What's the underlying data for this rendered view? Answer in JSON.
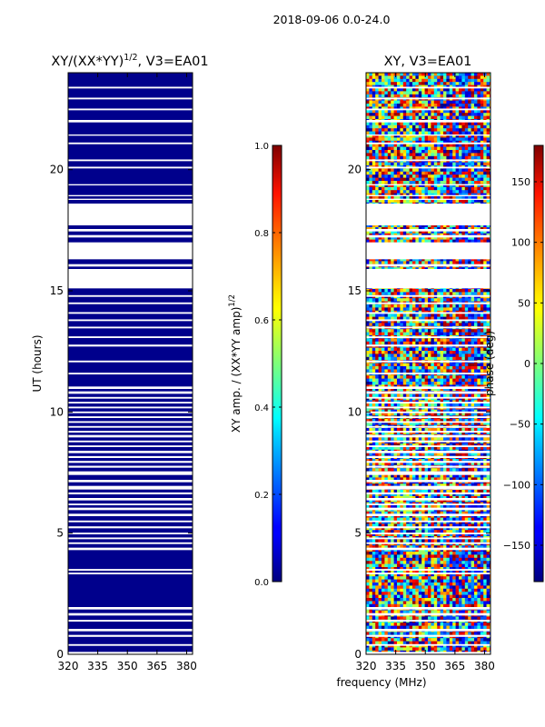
{
  "figure": {
    "suptitle": "2018-09-06 0.0-24.0",
    "xlabel_shared": "frequency (MHz)"
  },
  "chart_data": [
    {
      "type": "heatmap",
      "title": "XY/(XX*YY)^1/2, V3=EA01",
      "title_main": "XY/(XX*YY)",
      "title_exp": "1/2",
      "title_tail": ", V3=EA01",
      "ylabel": "UT (hours)",
      "xlim": [
        320,
        383
      ],
      "ylim": [
        0,
        24
      ],
      "xticks": [
        "320",
        "335",
        "350",
        "365",
        "380"
      ],
      "xtick_values": [
        320,
        335,
        350,
        365,
        380
      ],
      "yticks": [
        "0",
        "5",
        "10",
        "15",
        "20"
      ],
      "ytick_values": [
        0,
        5,
        10,
        15,
        20
      ],
      "cmap": "jet",
      "fill_value": 0.02,
      "colorbar": {
        "label": "XY amp. / (XX*YY amp)^1/2",
        "label_main": "XY amp. / (XX*YY amp)",
        "label_exp": "1/2",
        "range": [
          0.0,
          1.0
        ],
        "ticks": [
          "0.0",
          "0.2",
          "0.4",
          "0.6",
          "0.8",
          "1.0"
        ],
        "tick_values": [
          0.0,
          0.2,
          0.4,
          0.6,
          0.8,
          1.0
        ]
      }
    },
    {
      "type": "heatmap",
      "title": "XY, V3=EA01",
      "ylabel": "",
      "xlim": [
        320,
        383
      ],
      "ylim": [
        0,
        24
      ],
      "xticks": [
        "320",
        "335",
        "350",
        "365",
        "380"
      ],
      "xtick_values": [
        320,
        335,
        350,
        365,
        380
      ],
      "yticks": [
        "0",
        "5",
        "10",
        "15",
        "20"
      ],
      "ytick_values": [
        0,
        5,
        10,
        15,
        20
      ],
      "cmap": "jet",
      "colorbar": {
        "label": "phase (deg)",
        "range": [
          -180,
          180
        ],
        "ticks": [
          "−150",
          "−100",
          "−50",
          "0",
          "50",
          "100",
          "150"
        ],
        "tick_values": [
          -150,
          -100,
          -50,
          0,
          50,
          100,
          150
        ]
      }
    }
  ],
  "flagged_ut_bands": [
    [
      0.0,
      0.1
    ],
    [
      0.35,
      0.42
    ],
    [
      0.72,
      0.8
    ],
    [
      0.95,
      1.05
    ],
    [
      1.35,
      1.42
    ],
    [
      1.6,
      1.7
    ],
    [
      1.85,
      1.95
    ],
    [
      3.3,
      3.37
    ],
    [
      3.45,
      3.52
    ],
    [
      4.3,
      4.4
    ],
    [
      4.55,
      4.62
    ],
    [
      4.75,
      4.82
    ],
    [
      4.95,
      5.02
    ],
    [
      5.2,
      5.28
    ],
    [
      5.45,
      5.52
    ],
    [
      5.7,
      5.8
    ],
    [
      5.95,
      6.05
    ],
    [
      6.15,
      6.22
    ],
    [
      6.35,
      6.45
    ],
    [
      6.6,
      6.68
    ],
    [
      6.8,
      6.95
    ],
    [
      7.1,
      7.2
    ],
    [
      7.4,
      7.55
    ],
    [
      7.7,
      7.78
    ],
    [
      7.9,
      7.98
    ],
    [
      8.1,
      8.18
    ],
    [
      8.3,
      8.4
    ],
    [
      8.55,
      8.62
    ],
    [
      8.75,
      8.82
    ],
    [
      8.95,
      9.05
    ],
    [
      9.15,
      9.22
    ],
    [
      9.35,
      9.42
    ],
    [
      9.55,
      9.62
    ],
    [
      9.75,
      9.82
    ],
    [
      9.95,
      10.02
    ],
    [
      10.15,
      10.22
    ],
    [
      10.35,
      10.42
    ],
    [
      10.55,
      10.62
    ],
    [
      10.75,
      10.85
    ],
    [
      10.95,
      11.05
    ],
    [
      11.55,
      11.62
    ],
    [
      12.05,
      12.12
    ],
    [
      12.7,
      12.78
    ],
    [
      13.05,
      13.12
    ],
    [
      13.45,
      13.52
    ],
    [
      13.75,
      13.82
    ],
    [
      14.05,
      14.12
    ],
    [
      14.45,
      14.52
    ],
    [
      14.75,
      14.82
    ],
    [
      15.1,
      15.9
    ],
    [
      16.0,
      16.1
    ],
    [
      16.3,
      17.0
    ],
    [
      17.2,
      17.3
    ],
    [
      17.45,
      17.55
    ],
    [
      17.7,
      18.6
    ],
    [
      18.75,
      18.8
    ],
    [
      18.9,
      18.95
    ],
    [
      19.35,
      19.4
    ],
    [
      20.05,
      20.12
    ],
    [
      20.35,
      20.42
    ],
    [
      21.05,
      21.12
    ],
    [
      21.4,
      21.45
    ],
    [
      21.95,
      22.05
    ],
    [
      22.45,
      22.52
    ],
    [
      22.9,
      22.97
    ],
    [
      23.35,
      23.42
    ]
  ]
}
